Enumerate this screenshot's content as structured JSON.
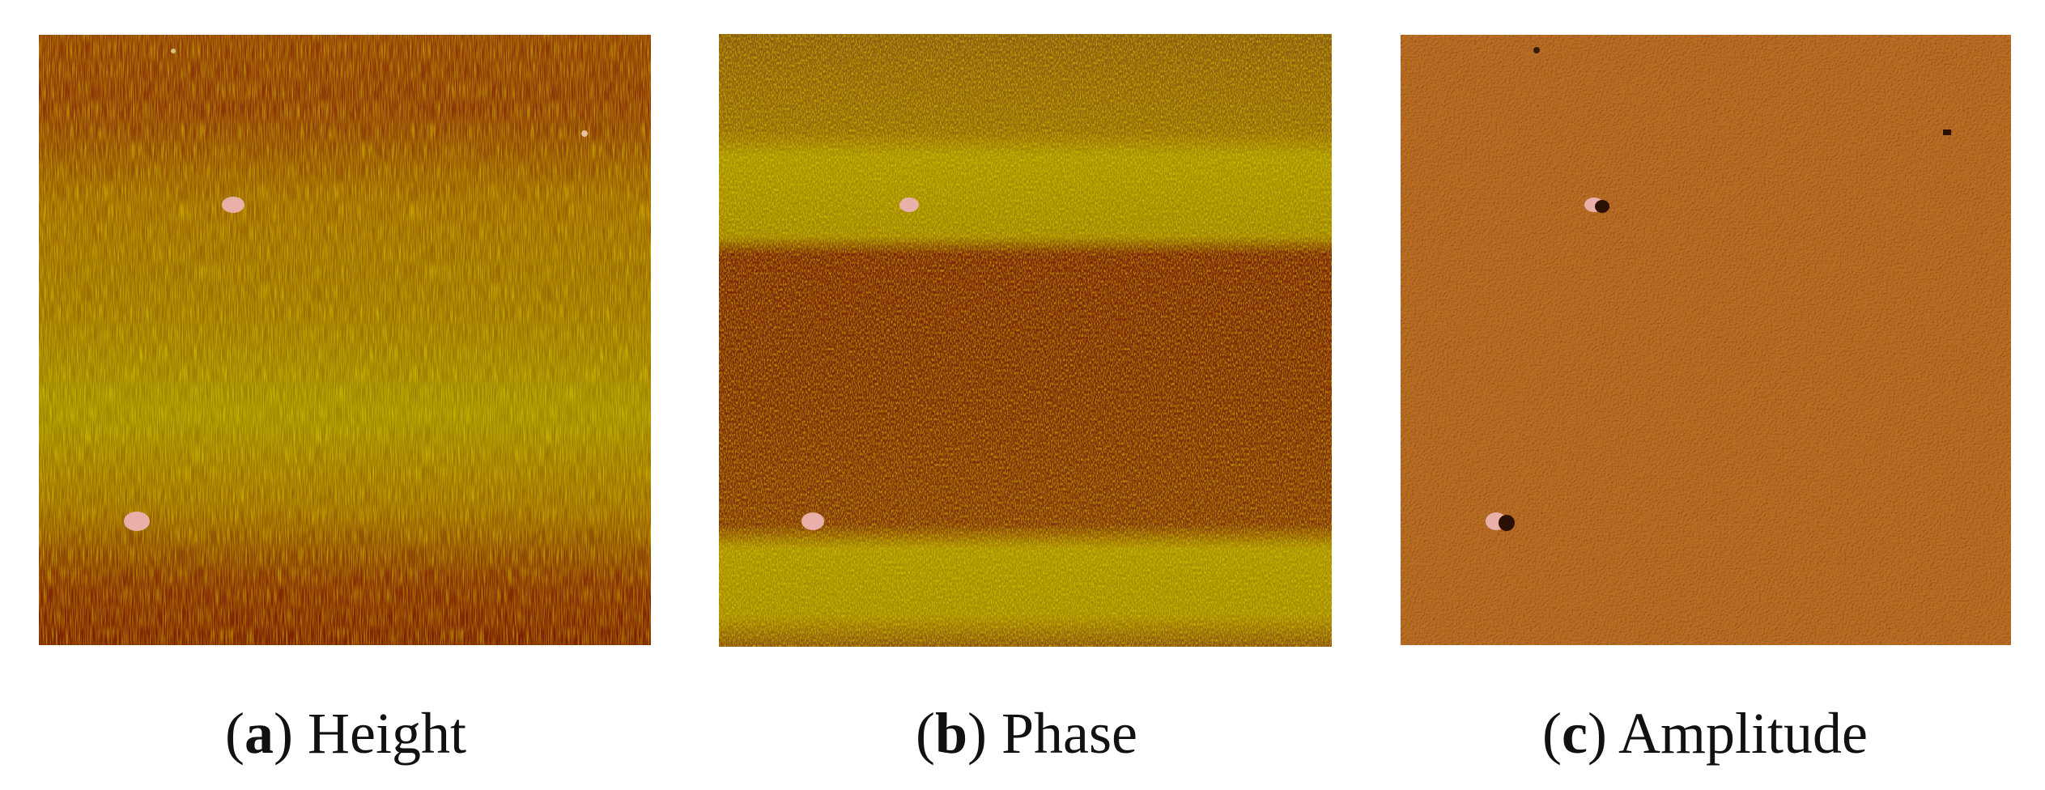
{
  "panels": [
    {
      "open": "(",
      "letter": "a",
      "close": ")",
      "name": "Height"
    },
    {
      "open": "(",
      "letter": "b",
      "close": ")",
      "name": "Phase"
    },
    {
      "open": "(",
      "letter": "c",
      "close": ")",
      "name": "Amplitude"
    }
  ]
}
